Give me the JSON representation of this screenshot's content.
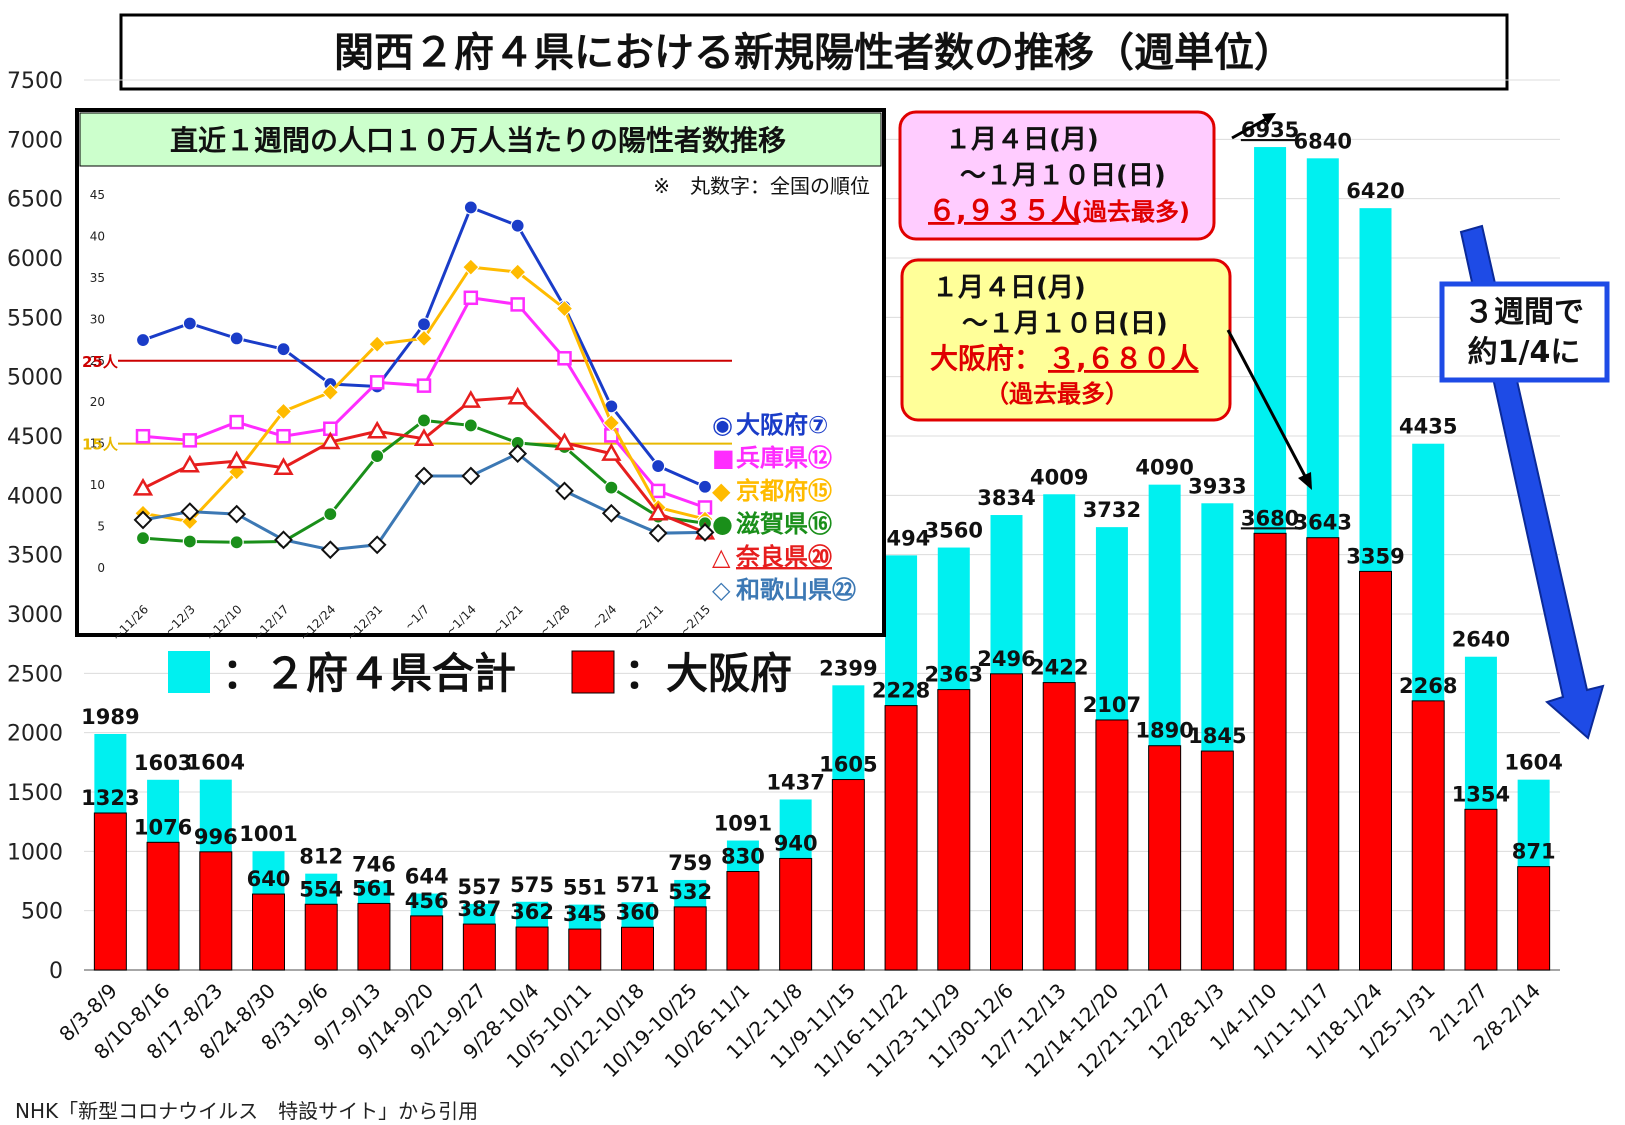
{
  "chart_data": [
    {
      "type": "bar",
      "title": "関西２府４県における新規陽性者数の推移（週単位）",
      "categories": [
        "8/3-8/9",
        "8/10-8/16",
        "8/17-8/23",
        "8/24-8/30",
        "8/31-9/6",
        "9/7-9/13",
        "9/14-9/20",
        "9/21-9/27",
        "9/28-10/4",
        "10/5-10/11",
        "10/12-10/18",
        "10/19-10/25",
        "10/26-11/1",
        "11/2-11/8",
        "11/9-11/15",
        "11/16-11/22",
        "11/23-11/29",
        "11/30-12/6",
        "12/7-12/13",
        "12/14-12/20",
        "12/21-12/27",
        "12/28-1/3",
        "1/4-1/10",
        "1/11-1/17",
        "1/18-1/24",
        "1/25-1/31",
        "2/1-2/7",
        "2/8-2/14"
      ],
      "series": [
        {
          "name": "２府４県合計",
          "color": "#00f0f0",
          "values": [
            1989,
            1603,
            1604,
            1001,
            812,
            746,
            644,
            557,
            575,
            551,
            571,
            759,
            1091,
            1437,
            2399,
            3494,
            3560,
            3834,
            4009,
            3732,
            4090,
            3933,
            6935,
            6840,
            6420,
            4435,
            2640,
            1604
          ]
        },
        {
          "name": "大阪府",
          "color": "#ff0000",
          "values": [
            1323,
            1076,
            996,
            640,
            554,
            561,
            456,
            387,
            362,
            345,
            360,
            532,
            830,
            940,
            1605,
            2228,
            2363,
            2496,
            2422,
            2107,
            1890,
            1845,
            3680,
            3643,
            3359,
            2268,
            1354,
            871
          ]
        }
      ],
      "yticks": [
        0,
        500,
        1000,
        1500,
        2000,
        2500,
        3000,
        3500,
        4000,
        4500,
        5000,
        5500,
        6000,
        6500,
        7000,
        7500
      ],
      "ylim": [
        0,
        7500
      ],
      "legend": [
        {
          "label": "：２府４県合計",
          "color": "#00f0f0"
        },
        {
          "label": "：大阪府",
          "color": "#ff0000"
        }
      ]
    },
    {
      "type": "line",
      "title": "直近１週間の人口１０万人当たりの陽性者数推移",
      "note": "※　丸数字：全国の順位",
      "x": [
        "~11/26",
        "~12/3",
        "~12/10",
        "~12/17",
        "~12/24",
        "~12/31",
        "~1/7",
        "~1/14",
        "~1/21",
        "~1/28",
        "~2/4",
        "~2/11",
        "~2/15"
      ],
      "yticks": [
        0,
        5,
        10,
        15,
        20,
        25,
        30,
        35,
        40,
        45
      ],
      "ylim": [
        0,
        45
      ],
      "reference_lines": [
        {
          "value": 25,
          "label": "25人",
          "color": "#cc0000"
        },
        {
          "value": 15,
          "label": "15人",
          "color": "#e8b800"
        }
      ],
      "series": [
        {
          "name": "大阪府⑦",
          "color": "#1a3cc8",
          "marker": "circle-filled",
          "legend_symbol": "◉",
          "values": [
            27.5,
            29.5,
            27.7,
            26.4,
            22.2,
            21.9,
            29.4,
            43.5,
            41.3,
            31.5,
            19.5,
            12.3,
            9.8
          ]
        },
        {
          "name": "兵庫県⑫",
          "color": "#ff2cff",
          "marker": "square-open",
          "legend_symbol": "■",
          "values": [
            15.9,
            15.4,
            17.6,
            15.9,
            16.8,
            22.4,
            22.0,
            32.6,
            31.8,
            25.3,
            16.0,
            9.3,
            7.3
          ]
        },
        {
          "name": "京都府⑮",
          "color": "#ffbb00",
          "marker": "diamond-filled",
          "legend_symbol": "◆",
          "values": [
            6.6,
            5.6,
            11.6,
            18.9,
            21.2,
            27.0,
            27.7,
            36.3,
            35.7,
            31.3,
            17.5,
            7.3,
            5.9
          ]
        },
        {
          "name": "滋賀県⑯",
          "color": "#1a8f1a",
          "marker": "circle-filled",
          "legend_symbol": "●",
          "values": [
            3.6,
            3.2,
            3.1,
            3.2,
            6.5,
            13.5,
            17.8,
            17.2,
            15.1,
            14.6,
            9.7,
            6.2,
            5.4
          ]
        },
        {
          "name": "奈良県⑳",
          "color": "#e61e1e",
          "marker": "triangle-open",
          "legend_symbol": "△",
          "values": [
            9.6,
            12.4,
            12.9,
            12.1,
            15.2,
            16.5,
            15.6,
            20.2,
            20.6,
            15.1,
            13.8,
            6.6,
            4.3
          ]
        },
        {
          "name": "和歌山県㉒",
          "color": "#3c78b4",
          "marker": "diamond-open",
          "legend_symbol": "◇",
          "values": [
            5.8,
            6.8,
            6.5,
            3.4,
            2.2,
            2.8,
            11.1,
            11.1,
            13.8,
            9.3,
            6.6,
            4.2,
            4.3
          ]
        }
      ]
    }
  ],
  "annotations": {
    "box1": {
      "line1": "１月４日(月)",
      "line2": "～１月１０日(日)",
      "line3": "６,９３５人",
      "line3b": "(過去最多)"
    },
    "box2": {
      "line1": "１月４日(月)",
      "line2": "～１月１０日(日)",
      "line3a": "大阪府：",
      "line3b": "３,６８０人",
      "line4": "（過去最多）"
    },
    "box3": {
      "line1": "３週間で",
      "line2": "約1/4に"
    }
  },
  "source": "NHK「新型コロナウイルス　特設サイト」から引用",
  "colors": {
    "total": "#00f0f0",
    "osaka": "#ff0000",
    "inset_header": "#ccffcc",
    "box1_fill": "#ffccff",
    "box2_fill": "#ffff99",
    "box_border": "#e00000",
    "arrow": "#1e4be6"
  }
}
